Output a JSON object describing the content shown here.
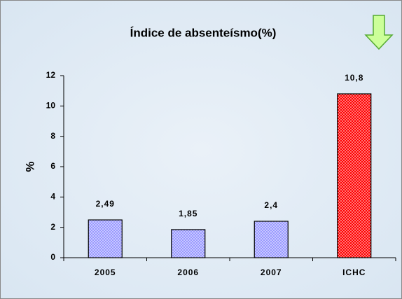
{
  "chart_data": {
    "type": "bar",
    "title": "Índice de absenteísmo(%)",
    "y_label": "%",
    "categories": [
      "2005",
      "2006",
      "2007",
      "ICHC"
    ],
    "values": [
      2.49,
      1.85,
      2.4,
      10.8
    ],
    "value_labels": [
      "2,49",
      "1,85",
      "2,4",
      "10,8"
    ],
    "colors": [
      "#9999ff",
      "#9999ff",
      "#9999ff",
      "#ff0000"
    ],
    "ylim": [
      0,
      12
    ],
    "yticks": [
      0,
      2,
      4,
      6,
      8,
      10,
      12
    ],
    "grid": false
  }
}
